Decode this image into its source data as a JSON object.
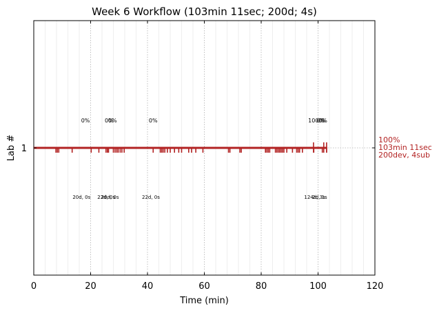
{
  "chart_data": {
    "type": "timeline",
    "title": "Week 6 Workflow (103min 11sec; 200d; 4s)",
    "xlabel": "Time (min)",
    "ylabel": "Lab #",
    "xlim": [
      0,
      120
    ],
    "x_ticks": [
      "0",
      "20",
      "40",
      "60",
      "80",
      "100",
      "120"
    ],
    "y_ticks": [
      "1"
    ],
    "grid": "vertical dotted every 20 min; faint every 4 min",
    "line_color": "#b22222",
    "timeline": {
      "lab": 1,
      "start": 0,
      "end": 103.2
    },
    "events_dev": [
      7.8,
      8.3,
      8.8,
      13.5,
      20.2,
      22.9,
      25.4,
      25.9,
      26.3,
      28.0,
      28.6,
      29.2,
      29.7,
      30.4,
      31.0,
      31.8,
      42.0,
      44.5,
      45.0,
      45.5,
      46.1,
      47.0,
      48.0,
      49.5,
      51.0,
      52.0,
      54.5,
      55.5,
      57.0,
      59.5,
      68.5,
      69.0,
      72.5,
      73.0,
      81.5,
      82.0,
      82.5,
      83.0,
      85.0,
      85.5,
      86.0,
      86.5,
      87.0,
      87.5,
      88.0,
      89.0,
      91.0,
      92.5,
      93.0,
      93.5,
      94.5,
      98.5,
      101.5,
      103.0
    ],
    "events_sub": [
      98.4,
      102.0,
      103.0
    ],
    "percent_labels": [
      {
        "x": 18.2,
        "text": "0%"
      },
      {
        "x": 26.5,
        "text": "0%"
      },
      {
        "x": 27.7,
        "text": "0%"
      },
      {
        "x": 42.0,
        "text": "0%"
      },
      {
        "x": 99.3,
        "text": "100%"
      },
      {
        "x": 101.1,
        "text": "0%"
      },
      {
        "x": 101.7,
        "text": "0%"
      }
    ],
    "count_labels": [
      {
        "x": 16.8,
        "text": "20d, 0s"
      },
      {
        "x": 25.5,
        "text": "22d, 0s"
      },
      {
        "x": 26.8,
        "text": "20d, 0s"
      },
      {
        "x": 41.2,
        "text": "22d, 0s"
      },
      {
        "x": 98.8,
        "text": "124d, 3s"
      },
      {
        "x": 100.6,
        "text": "2d, 1s"
      }
    ],
    "side_label": [
      "100%",
      "103min 11sec",
      "200dev, 4sub"
    ]
  }
}
